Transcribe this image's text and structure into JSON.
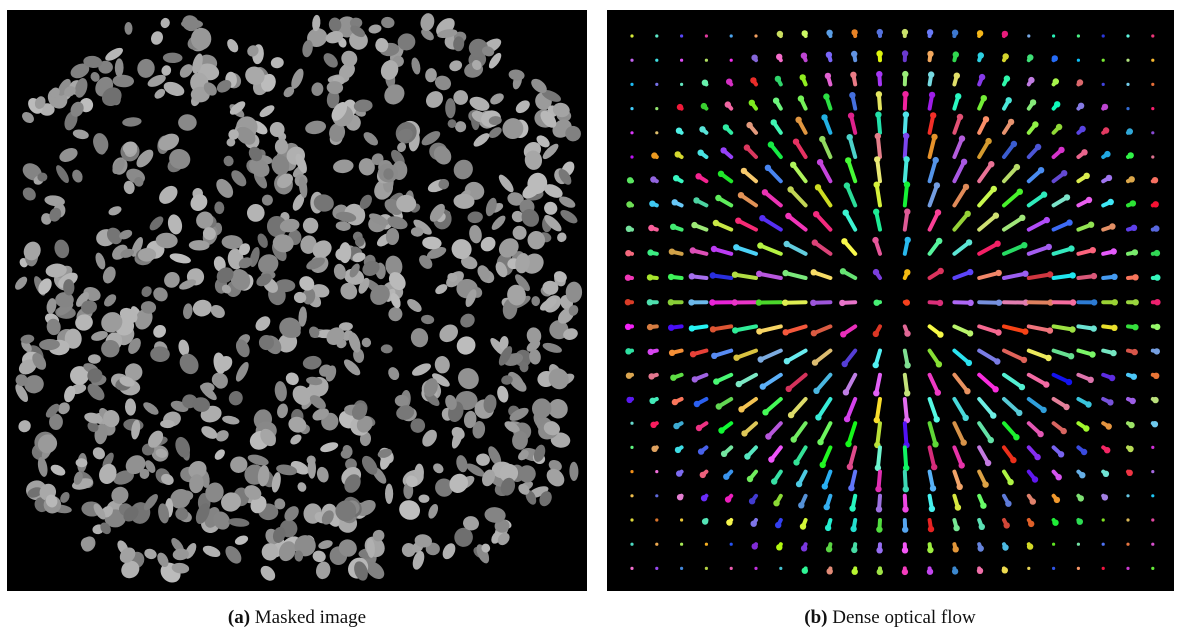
{
  "panels": [
    {
      "label": "(a)",
      "caption": "Masked image"
    },
    {
      "label": "(b)",
      "caption": "Dense optical flow"
    }
  ]
}
